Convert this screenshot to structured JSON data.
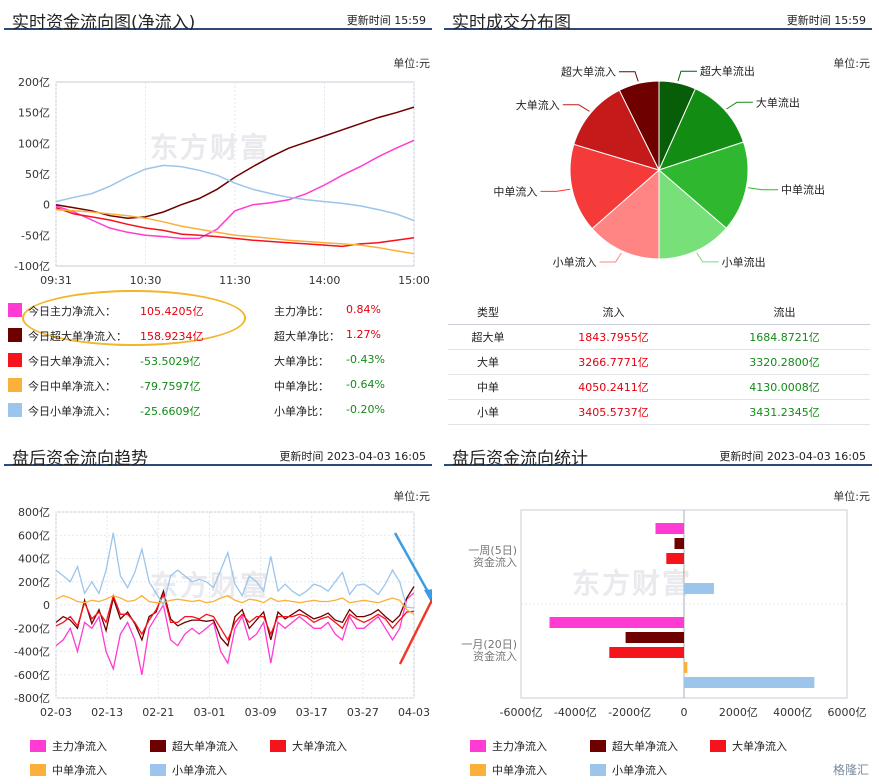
{
  "panels": {
    "realtime_flow": {
      "title": "实时资金流向图(净流入)",
      "update": "更新时间  15:59",
      "unit": "单位:元"
    },
    "deal_distribution": {
      "title": "实时成交分布图",
      "update": "更新时间  15:59",
      "unit": "单位:元"
    },
    "after_trend": {
      "title": "盘后资金流向趋势",
      "update": "更新时间  2023-04-03 16:05",
      "unit": "单位:元"
    },
    "after_stats": {
      "title": "盘后资金流向统计",
      "update": "更新时间  2023-04-03 16:05",
      "unit": "单位:元"
    }
  },
  "watermark": "东方财富",
  "footer_logo": "格隆汇",
  "colors": {
    "main": "#ff3bd4",
    "super": "#6e0000",
    "large": "#f5131c",
    "medium": "#fbb03b",
    "small": "#9cc5ec",
    "red_text": "#e3000f",
    "green_text": "#128b17"
  },
  "today_stats": [
    {
      "label": "今日主力净流入：",
      "value": "105.4205亿",
      "value_color": "red",
      "ratio_label": "主力净比：",
      "ratio_value": "0.84%",
      "ratio_color": "red",
      "swatch": "#ff3bd4"
    },
    {
      "label": "今日超大单净流入：",
      "value": "158.9234亿",
      "value_color": "red",
      "ratio_label": "超大单净比：",
      "ratio_value": "1.27%",
      "ratio_color": "red",
      "swatch": "#6e0000"
    },
    {
      "label": "今日大单净流入：",
      "value": "-53.5029亿",
      "value_color": "green",
      "ratio_label": "大单净比：",
      "ratio_value": "-0.43%",
      "ratio_color": "green",
      "swatch": "#f5131c"
    },
    {
      "label": "今日中单净流入：",
      "value": "-79.7597亿",
      "value_color": "green",
      "ratio_label": "中单净比：",
      "ratio_value": "-0.64%",
      "ratio_color": "green",
      "swatch": "#fbb03b"
    },
    {
      "label": "今日小单净流入：",
      "value": "-25.6609亿",
      "value_color": "green",
      "ratio_label": "小单净比：",
      "ratio_value": "-0.20%",
      "ratio_color": "green",
      "swatch": "#9cc5ec"
    }
  ],
  "deal_table": {
    "headers": [
      "类型",
      "流入",
      "流出"
    ],
    "rows": [
      {
        "type": "超大单",
        "inflow": "1843.7955亿",
        "outflow": "1684.8721亿"
      },
      {
        "type": "大单",
        "inflow": "3266.7771亿",
        "outflow": "3320.2800亿"
      },
      {
        "type": "中单",
        "inflow": "4050.2411亿",
        "outflow": "4130.0008亿"
      },
      {
        "type": "小单",
        "inflow": "3405.5737亿",
        "outflow": "3431.2345亿"
      }
    ]
  },
  "trend_legend": [
    "主力净流入",
    "超大单净流入",
    "大单净流入",
    "中单净流入",
    "小单净流入"
  ],
  "stats_legend": [
    "主力净流入",
    "超大单净流入",
    "大单净流入",
    "中单净流入",
    "小单净流入"
  ],
  "chart_data": [
    {
      "type": "line",
      "title": "实时资金流向图(净流入)",
      "x_ticks": [
        "09:31",
        "10:30",
        "11:30",
        "14:00",
        "15:00"
      ],
      "y_ticks": [
        "200亿",
        "150亿",
        "100亿",
        "50亿",
        "0",
        "-50亿",
        "-100亿"
      ],
      "ylim": [
        -100,
        200
      ],
      "x": [
        0,
        1,
        2,
        3,
        4,
        5,
        6,
        7,
        8,
        9,
        10,
        11,
        12,
        13,
        14,
        15,
        16,
        17,
        18,
        19,
        20
      ],
      "series": [
        {
          "color": "#ff3bd4",
          "values": [
            -2,
            -12,
            -25,
            -38,
            -45,
            -50,
            -52,
            -55,
            -55,
            -40,
            -10,
            0,
            3,
            8,
            18,
            32,
            48,
            62,
            78,
            92,
            105
          ]
        },
        {
          "color": "#6e0000",
          "values": [
            0,
            -5,
            -10,
            -18,
            -22,
            -20,
            -12,
            0,
            10,
            25,
            45,
            62,
            78,
            92,
            102,
            112,
            122,
            132,
            142,
            150,
            159
          ]
        },
        {
          "color": "#f5131c",
          "values": [
            -5,
            -15,
            -20,
            -25,
            -32,
            -38,
            -42,
            -48,
            -50,
            -52,
            -55,
            -58,
            -60,
            -62,
            -64,
            -66,
            -68,
            -64,
            -62,
            -58,
            -54
          ]
        },
        {
          "color": "#fbb03b",
          "values": [
            -8,
            -10,
            -12,
            -15,
            -18,
            -22,
            -28,
            -35,
            -40,
            -45,
            -50,
            -52,
            -55,
            -58,
            -60,
            -62,
            -64,
            -66,
            -70,
            -75,
            -80
          ]
        },
        {
          "color": "#9cc5ec",
          "values": [
            5,
            12,
            18,
            30,
            45,
            58,
            64,
            62,
            56,
            48,
            35,
            25,
            18,
            12,
            8,
            5,
            2,
            -2,
            -8,
            -15,
            -26
          ]
        }
      ]
    },
    {
      "type": "pie",
      "title": "实时成交分布图",
      "labels": [
        "超大单流出",
        "大单流出",
        "中单流出",
        "小单流出",
        "小单流入",
        "中单流入",
        "大单流入",
        "超大单流入"
      ],
      "values": [
        1684.8721,
        3320.28,
        4130.0008,
        3431.2345,
        3405.5737,
        4050.2411,
        3266.7771,
        1843.7955
      ],
      "colors": [
        "#085d08",
        "#138c13",
        "#2fb82f",
        "#78e078",
        "#ff8585",
        "#f53a3a",
        "#c41a1a",
        "#6e0000"
      ]
    },
    {
      "type": "line",
      "title": "盘后资金流向趋势",
      "x_ticks": [
        "02-03",
        "02-13",
        "02-21",
        "03-01",
        "03-09",
        "03-17",
        "03-27",
        "04-03"
      ],
      "y_ticks": [
        "800亿",
        "600亿",
        "400亿",
        "200亿",
        "0",
        "-200亿",
        "-400亿",
        "-600亿",
        "-800亿"
      ],
      "ylim": [
        -800,
        800
      ],
      "series": [
        {
          "color": "#ff3bd4",
          "values": [
            -350,
            -300,
            -200,
            -400,
            -150,
            -200,
            -100,
            -400,
            -550,
            -250,
            -150,
            -300,
            -600,
            -200,
            -100,
            0,
            -300,
            -350,
            -250,
            -200,
            -250,
            -200,
            -150,
            -400,
            -500,
            -200,
            -100,
            -300,
            -250,
            -150,
            -500,
            -150,
            -200,
            -150,
            -100,
            -150,
            -200,
            -200,
            -150,
            -250,
            -300,
            -100,
            -200,
            -200,
            -150,
            -100,
            -200,
            -300,
            -200,
            50,
            105
          ]
        },
        {
          "color": "#6e0000",
          "values": [
            -150,
            -100,
            -130,
            -200,
            40,
            -160,
            -40,
            -220,
            60,
            -120,
            -60,
            -160,
            -300,
            -100,
            -60,
            120,
            -120,
            -180,
            -150,
            -130,
            -130,
            -140,
            -130,
            -280,
            -350,
            -100,
            -40,
            -200,
            -130,
            -60,
            -300,
            -60,
            -120,
            -80,
            -40,
            -80,
            -120,
            -100,
            -70,
            -130,
            -150,
            -40,
            -100,
            -100,
            -80,
            -40,
            -100,
            -150,
            -90,
            60,
            159
          ]
        },
        {
          "color": "#f5131c",
          "values": [
            -180,
            -150,
            -100,
            -180,
            20,
            -120,
            -60,
            -150,
            80,
            -80,
            -80,
            -150,
            -250,
            -130,
            -40,
            90,
            -150,
            -150,
            -100,
            -100,
            -120,
            -80,
            -100,
            -200,
            -300,
            -150,
            -80,
            -150,
            -100,
            -100,
            -250,
            -100,
            -100,
            -100,
            -80,
            -100,
            -150,
            -120,
            -100,
            -150,
            -200,
            -80,
            -120,
            -150,
            -120,
            -80,
            -120,
            -200,
            -130,
            -60,
            -54
          ]
        },
        {
          "color": "#fbb03b",
          "values": [
            50,
            80,
            60,
            30,
            20,
            40,
            30,
            50,
            80,
            60,
            30,
            40,
            80,
            30,
            20,
            20,
            40,
            50,
            40,
            30,
            40,
            20,
            30,
            60,
            80,
            40,
            20,
            50,
            40,
            20,
            60,
            30,
            40,
            30,
            20,
            30,
            40,
            30,
            30,
            40,
            60,
            20,
            30,
            40,
            30,
            20,
            40,
            60,
            40,
            -40,
            -80
          ]
        },
        {
          "color": "#9cc5ec",
          "values": [
            300,
            250,
            200,
            330,
            100,
            200,
            100,
            300,
            620,
            250,
            150,
            280,
            480,
            200,
            100,
            0,
            250,
            300,
            250,
            200,
            220,
            200,
            150,
            300,
            450,
            180,
            80,
            250,
            200,
            120,
            420,
            120,
            180,
            120,
            80,
            120,
            180,
            160,
            120,
            200,
            280,
            90,
            170,
            180,
            140,
            90,
            180,
            300,
            200,
            -20,
            -26
          ]
        }
      ]
    },
    {
      "type": "bar",
      "orientation": "horizontal",
      "title": "盘后资金流向统计",
      "categories": [
        "一周(5日)资金流入",
        "一月(20日)资金流入"
      ],
      "x_ticks": [
        "-6000亿",
        "-4000亿",
        "-2000亿",
        "0",
        "2000亿",
        "4000亿",
        "6000亿"
      ],
      "xlim": [
        -6000,
        6000
      ],
      "series": [
        {
          "name": "主力净流入",
          "color": "#ff3bd4",
          "values": [
            -1050,
            -4950
          ]
        },
        {
          "name": "超大单净流入",
          "color": "#6e0000",
          "values": [
            -350,
            -2150
          ]
        },
        {
          "name": "大单净流入",
          "color": "#f5131c",
          "values": [
            -650,
            -2750
          ]
        },
        {
          "name": "中单净流入",
          "color": "#fbb03b",
          "values": [
            -30,
            120
          ]
        },
        {
          "name": "小单净流入",
          "color": "#9cc5ec",
          "values": [
            1100,
            4800
          ]
        }
      ]
    }
  ]
}
